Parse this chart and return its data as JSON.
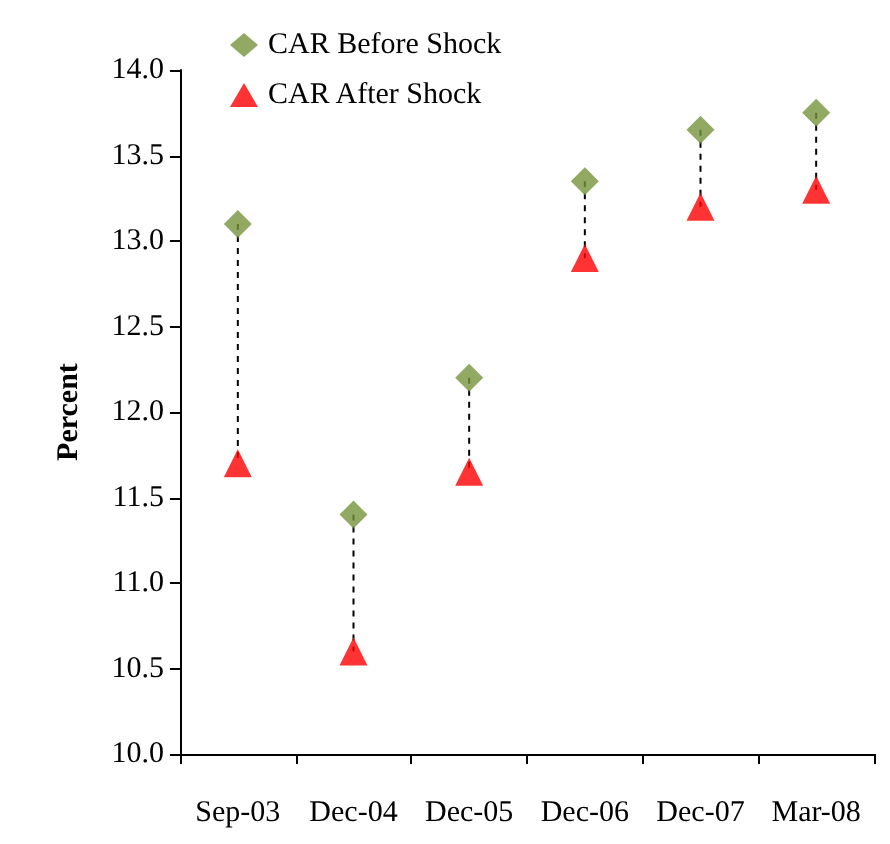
{
  "chart_data": {
    "type": "scatter",
    "ylabel": "Percent",
    "categories": [
      "Sep-03",
      "Dec-04",
      "Dec-05",
      "Dec-06",
      "Dec-07",
      "Mar-08"
    ],
    "series": [
      {
        "name": "CAR Before Shock",
        "color": "#77933c",
        "marker": "diamond",
        "values": [
          13.1,
          11.4,
          12.2,
          13.35,
          13.65,
          13.75
        ]
      },
      {
        "name": "CAR After Shock",
        "color": "#ff0000",
        "marker": "triangle",
        "values": [
          11.7,
          10.6,
          11.65,
          12.9,
          13.2,
          13.3
        ]
      }
    ],
    "ylim": [
      10,
      14
    ],
    "yticks": [
      {
        "value": 10,
        "label": "10.0"
      },
      10.5,
      {
        "value": 11,
        "label": "11.0"
      },
      11.5,
      {
        "value": 12,
        "label": "12.0"
      },
      12.5,
      {
        "value": 13,
        "label": "13.0"
      },
      13.5,
      {
        "value": 14,
        "label": "14.0"
      }
    ],
    "grid": false,
    "legend": "top left"
  }
}
